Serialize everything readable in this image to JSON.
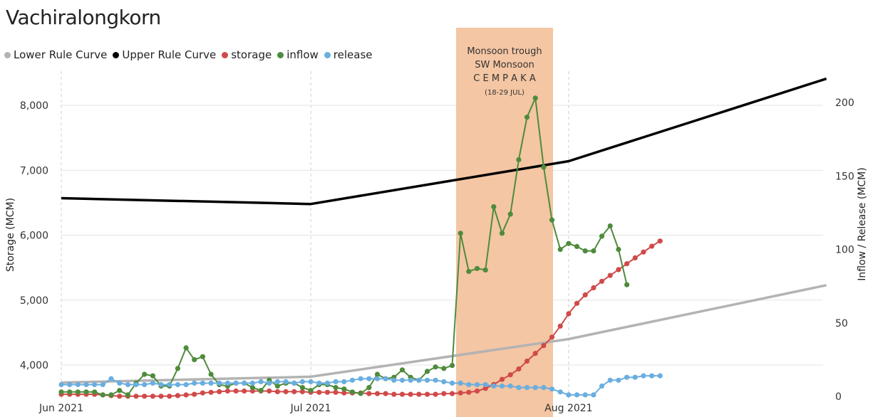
{
  "chart_data": {
    "type": "line",
    "title": "Vachiralongkorn",
    "ylabel_left": "Storage (MCM)",
    "ylabel_right": "Inflow / Release (MCM)",
    "ylim_left": [
      3500,
      8800
    ],
    "ylim_right": [
      0,
      220
    ],
    "x_ticks": [
      "Jun 2021",
      "Jul 2021",
      "Aug 2021"
    ],
    "y_ticks_left": [
      "4,000",
      "5,000",
      "6,000",
      "7,000",
      "8,000"
    ],
    "y_ticks_right": [
      "0",
      "50",
      "100",
      "150",
      "200"
    ],
    "legend": [
      "Lower Rule Curve",
      "Upper Rule Curve",
      "storage",
      "inflow",
      "release"
    ],
    "colors": {
      "lower_rule": "#b3b3b3",
      "upper_rule": "#000000",
      "storage": "#d04a4a",
      "inflow": "#4e8b3c",
      "release": "#6aaee0",
      "highlight": "#f4c6a3"
    },
    "annotation": {
      "lines": [
        "Monsoon trough",
        "SW Monsoon",
        "C E M P A K A",
        "(18-29 JUL)"
      ],
      "start_day": 48,
      "end_day": 60
    },
    "series": [
      {
        "name": "Lower Rule Curve",
        "axis": "left",
        "style": "line",
        "x": [
          0,
          30,
          61,
          92
        ],
        "values": [
          3730,
          3820,
          4400,
          5230
        ]
      },
      {
        "name": "Upper Rule Curve",
        "axis": "left",
        "style": "line",
        "x": [
          0,
          30,
          61,
          92
        ],
        "values": [
          6570,
          6480,
          7140,
          8410
        ]
      },
      {
        "name": "storage",
        "axis": "left",
        "style": "points",
        "values": [
          3550,
          3550,
          3550,
          3550,
          3550,
          3540,
          3530,
          3520,
          3520,
          3520,
          3520,
          3520,
          3520,
          3520,
          3530,
          3540,
          3550,
          3570,
          3580,
          3590,
          3600,
          3600,
          3600,
          3600,
          3600,
          3600,
          3590,
          3590,
          3590,
          3590,
          3580,
          3580,
          3580,
          3580,
          3570,
          3570,
          3570,
          3560,
          3560,
          3560,
          3550,
          3550,
          3550,
          3550,
          3550,
          3550,
          3560,
          3560,
          3570,
          3580,
          3600,
          3640,
          3700,
          3780,
          3850,
          3940,
          4060,
          4180,
          4300,
          4430,
          4600,
          4790,
          4950,
          5080,
          5190,
          5290,
          5380,
          5470,
          5560,
          5650,
          5740,
          5830,
          5910
        ]
      },
      {
        "name": "inflow",
        "axis": "right",
        "style": "points",
        "values": [
          3,
          3,
          3,
          3,
          3,
          1,
          1,
          4,
          1,
          9,
          15,
          14,
          7,
          7,
          19,
          33,
          25,
          27,
          15,
          8,
          7,
          9,
          9,
          6,
          4,
          11,
          7,
          9,
          9,
          6,
          4,
          8,
          8,
          6,
          5,
          3,
          2,
          6,
          15,
          12,
          13,
          18,
          13,
          11,
          17,
          20,
          19,
          21,
          111,
          85,
          87,
          86,
          129,
          111,
          124,
          161,
          190,
          203,
          156,
          120,
          100,
          104,
          102,
          99,
          99,
          109,
          116,
          100,
          76
        ]
      },
      {
        "name": "release",
        "axis": "right",
        "style": "points",
        "values": [
          8,
          8,
          8,
          8,
          8,
          8,
          12,
          9,
          8,
          8,
          8,
          9,
          8,
          8,
          8,
          8,
          9,
          9,
          9,
          9,
          9,
          9,
          9,
          9,
          10,
          9,
          10,
          10,
          9,
          10,
          10,
          9,
          9,
          10,
          10,
          11,
          12,
          12,
          12,
          12,
          11,
          11,
          11,
          11,
          11,
          11,
          10,
          9,
          9,
          8,
          8,
          8,
          7,
          7,
          7,
          6,
          6,
          6,
          6,
          5,
          3,
          1,
          1,
          1,
          1,
          7,
          11,
          11,
          13,
          13,
          14,
          14,
          14
        ]
      }
    ]
  }
}
